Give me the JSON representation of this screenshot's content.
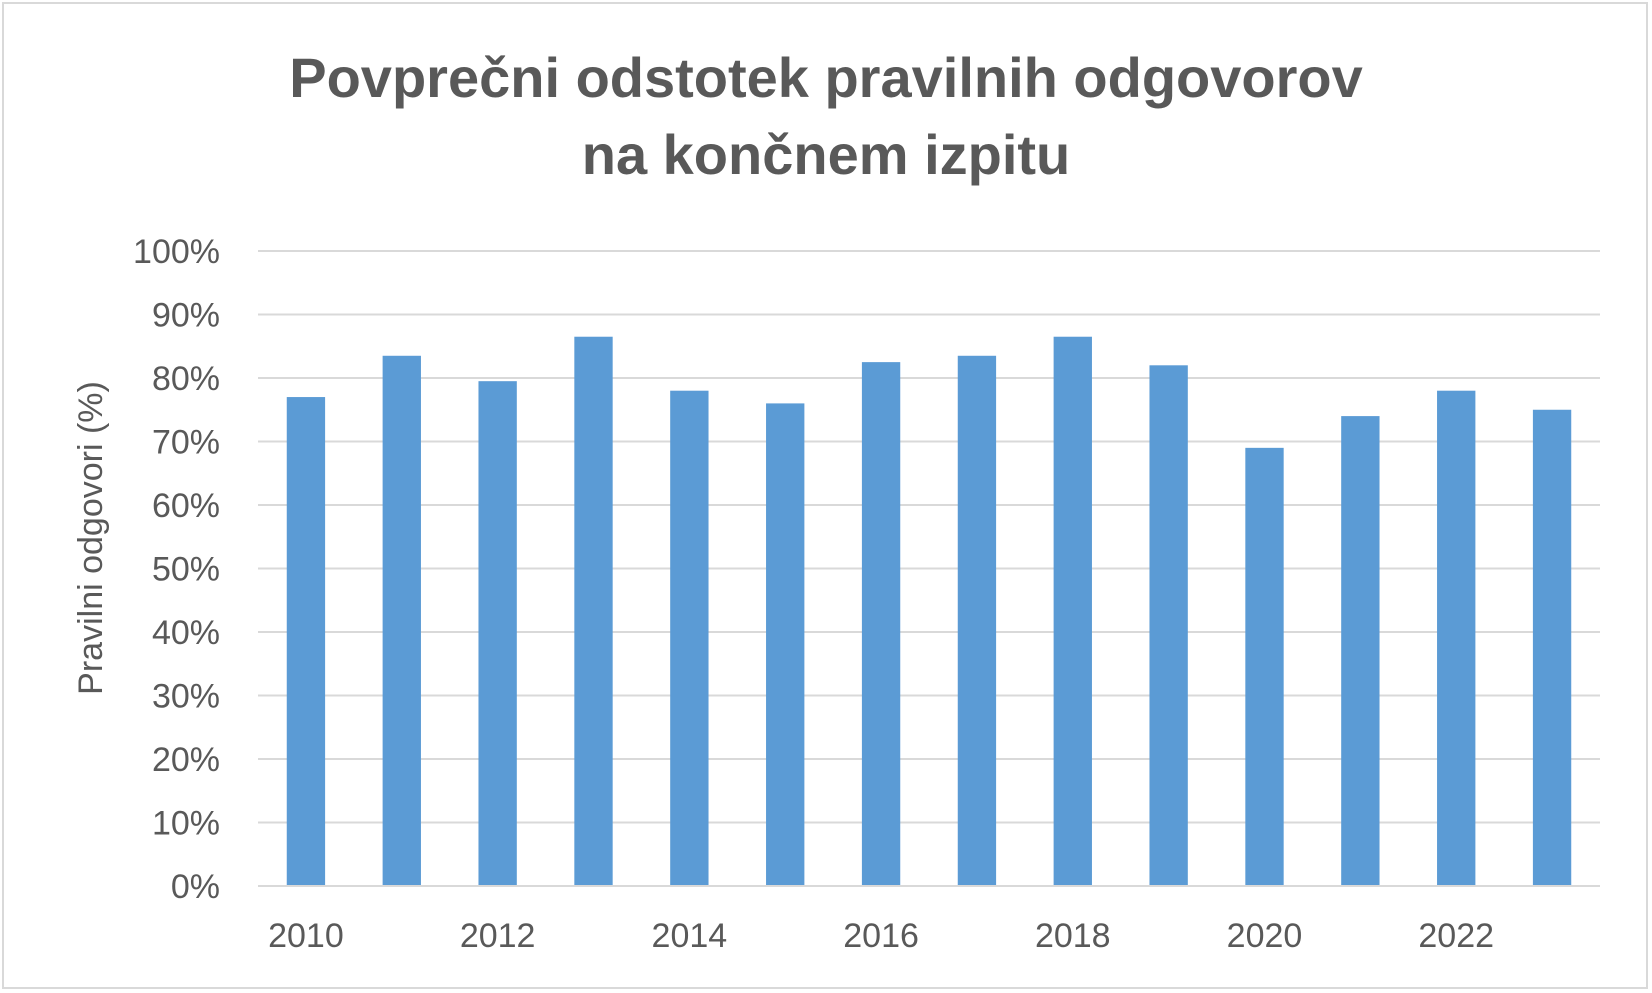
{
  "chart_data": {
    "type": "bar",
    "title_lines": [
      "Povprečni odstotek pravilnih odgovorov",
      "na končnem izpitu"
    ],
    "ylabel": "Pravilni odgovori (%)",
    "xlabel": "",
    "ylim": [
      0,
      100
    ],
    "y_ticks": [
      "0%",
      "10%",
      "20%",
      "30%",
      "40%",
      "50%",
      "60%",
      "70%",
      "80%",
      "90%",
      "100%"
    ],
    "x_tick_labels": [
      "2010",
      "",
      "2012",
      "",
      "2014",
      "",
      "2016",
      "",
      "2018",
      "",
      "2020",
      "",
      "2022",
      ""
    ],
    "categories": [
      "2010",
      "2011",
      "2012",
      "2013",
      "2014",
      "2015",
      "2016",
      "2017",
      "2018",
      "2019",
      "2020",
      "2021",
      "2022",
      "2023"
    ],
    "values": [
      77,
      83.5,
      79.5,
      86.5,
      78,
      76,
      82.5,
      83.5,
      86.5,
      82,
      69,
      74,
      78,
      75
    ],
    "bar_color": "#5b9bd5",
    "grid": true,
    "legend": false
  }
}
